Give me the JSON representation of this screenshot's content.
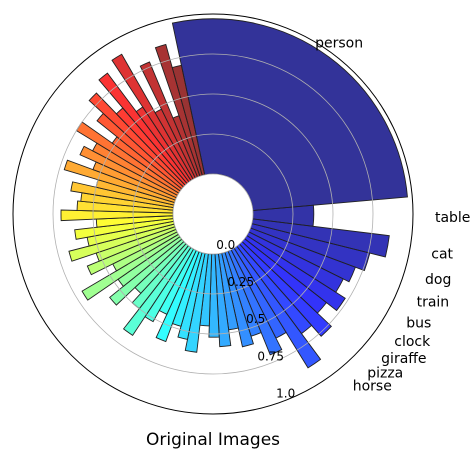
{
  "chart_data": {
    "type": "polar-bar",
    "title": "Original Images",
    "categories": [
      "person",
      "table",
      "cat",
      "dog",
      "train",
      "bus",
      "clock",
      "giraffe",
      "pizza",
      "horse",
      null,
      null,
      null,
      null,
      null,
      null,
      null,
      null,
      null,
      null,
      null,
      null,
      null,
      null,
      null,
      null,
      null,
      null,
      null,
      null,
      null,
      null,
      null,
      null,
      null,
      null,
      null,
      null,
      null,
      null,
      null,
      null,
      null,
      null,
      null,
      null,
      null,
      null,
      null,
      null,
      null,
      null,
      null,
      null,
      null,
      null,
      null,
      null,
      null,
      null
    ],
    "values": [
      0.97,
      0.38,
      0.86,
      0.76,
      0.7,
      0.66,
      0.73,
      0.65,
      0.77,
      0.68,
      0.88,
      0.62,
      0.7,
      0.55,
      0.6,
      0.48,
      0.58,
      0.52,
      0.45,
      0.62,
      0.55,
      0.48,
      0.6,
      0.44,
      0.52,
      0.66,
      0.5,
      0.42,
      0.58,
      0.47,
      0.7,
      0.45,
      0.6,
      0.52,
      0.68,
      0.55,
      0.62,
      0.48,
      0.7,
      0.6,
      0.58,
      0.65,
      0.5,
      0.72,
      0.55,
      0.66,
      0.6,
      0.75,
      0.52,
      0.68,
      0.8,
      0.62,
      0.85,
      0.55,
      0.9,
      0.48,
      0.78,
      0.4,
      0.85,
      0.7
    ],
    "widths": [
      97,
      12,
      7,
      6.5,
      6,
      6,
      5.5,
      5.5,
      5,
      5,
      4.8,
      4.8,
      4.8,
      4.8,
      4.8,
      4.8,
      4.8,
      4.8,
      4.8,
      4.8,
      4.4,
      4.4,
      4.4,
      4.4,
      4.4,
      4.4,
      4.4,
      4.4,
      4.4,
      4.4,
      4,
      4,
      4,
      4,
      4,
      4,
      4,
      4,
      4,
      4,
      3.7,
      3.7,
      3.7,
      3.7,
      3.7,
      3.7,
      3.7,
      3.7,
      3.7,
      3.7,
      3.55,
      3.55,
      3.55,
      3.55,
      3.55,
      3.55,
      3.55,
      3.55,
      3.55,
      3.55
    ],
    "colormap": "jet",
    "ylim": [
      -0.25,
      1
    ],
    "yticks": [
      {
        "value": 0,
        "label": "0.0"
      },
      0.25,
      0.5,
      0.75,
      {
        "value": 1,
        "label": "1.0"
      }
    ],
    "grid": true
  }
}
